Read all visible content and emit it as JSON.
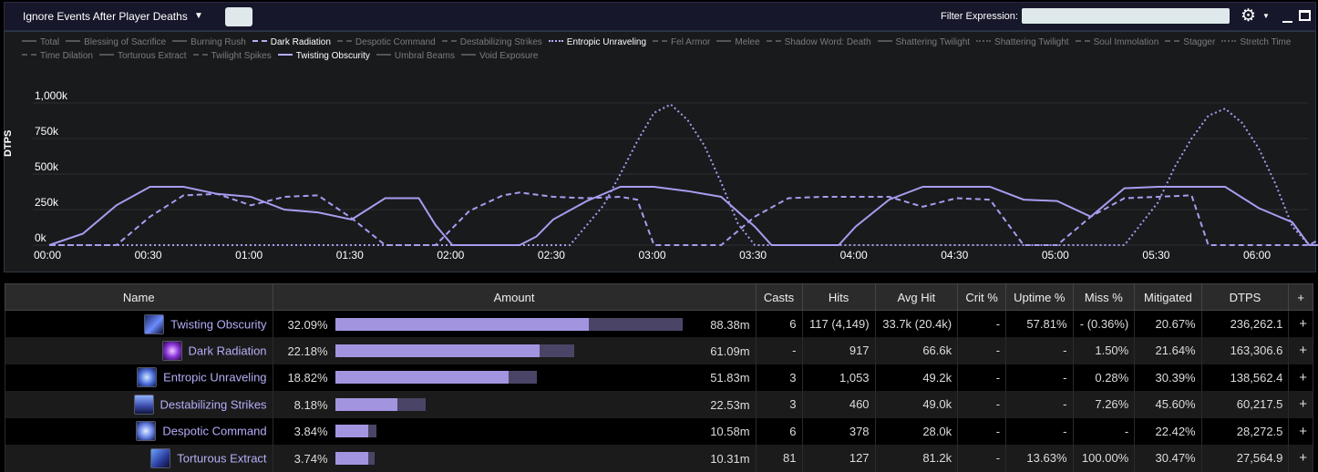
{
  "toolbar": {
    "ignore_events_label": "Ignore Events After Player Deaths",
    "filter_label": "Filter Expression:",
    "filter_value": ""
  },
  "chart_data": {
    "type": "line",
    "ylabel": "DTPS",
    "ylim": [
      0,
      1100000
    ],
    "y_ticks": [
      "0k",
      "250k",
      "500k",
      "750k",
      "1,000k"
    ],
    "x_ticks": [
      "00:00",
      "00:30",
      "01:00",
      "01:30",
      "02:00",
      "02:30",
      "03:00",
      "03:30",
      "04:00",
      "04:30",
      "05:00",
      "05:30",
      "06:00"
    ],
    "legend": [
      {
        "name": "Total",
        "dash": "solid",
        "highlighted": false
      },
      {
        "name": "Blessing of Sacrifice",
        "dash": "solid",
        "highlighted": false
      },
      {
        "name": "Burning Rush",
        "dash": "solid",
        "highlighted": false
      },
      {
        "name": "Dark Radiation",
        "dash": "dashed",
        "highlighted": true
      },
      {
        "name": "Despotic Command",
        "dash": "dashdot",
        "highlighted": false
      },
      {
        "name": "Destabilizing Strikes",
        "dash": "dashed",
        "highlighted": false
      },
      {
        "name": "Entropic Unraveling",
        "dash": "dotted",
        "highlighted": true
      },
      {
        "name": "Fel Armor",
        "dash": "dashdot",
        "highlighted": false
      },
      {
        "name": "Melee",
        "dash": "solid",
        "highlighted": false
      },
      {
        "name": "Shadow Word: Death",
        "dash": "dashdot",
        "highlighted": false
      },
      {
        "name": "Shattering Twilight",
        "dash": "solid",
        "highlighted": false
      },
      {
        "name": "Shattering Twilight",
        "dash": "dotted",
        "highlighted": false
      },
      {
        "name": "Soul Immolation",
        "dash": "dashed",
        "highlighted": false
      },
      {
        "name": "Stagger",
        "dash": "dashed",
        "highlighted": false
      },
      {
        "name": "Stretch Time",
        "dash": "dotted",
        "highlighted": false
      },
      {
        "name": "Time Dilation",
        "dash": "dashdot",
        "highlighted": false
      },
      {
        "name": "Torturous Extract",
        "dash": "solid",
        "highlighted": false
      },
      {
        "name": "Twilight Spikes",
        "dash": "dashed",
        "highlighted": false
      },
      {
        "name": "Twisting Obscurity",
        "dash": "solid",
        "highlighted": true
      },
      {
        "name": "Umbral Beams",
        "dash": "solid",
        "highlighted": false
      },
      {
        "name": "Void Exposure",
        "dash": "solid",
        "highlighted": false
      }
    ],
    "series": [
      {
        "name": "Twisting Obscurity",
        "dash": "solid",
        "color": "#a89cf0",
        "points": [
          [
            0,
            0
          ],
          [
            10,
            80
          ],
          [
            20,
            280
          ],
          [
            30,
            410
          ],
          [
            40,
            410
          ],
          [
            50,
            360
          ],
          [
            60,
            340
          ],
          [
            70,
            250
          ],
          [
            80,
            230
          ],
          [
            90,
            180
          ],
          [
            100,
            330
          ],
          [
            110,
            330
          ],
          [
            115,
            140
          ],
          [
            120,
            0
          ],
          [
            140,
            0
          ],
          [
            145,
            60
          ],
          [
            150,
            180
          ],
          [
            160,
            310
          ],
          [
            170,
            410
          ],
          [
            180,
            410
          ],
          [
            190,
            380
          ],
          [
            200,
            340
          ],
          [
            210,
            130
          ],
          [
            215,
            0
          ],
          [
            235,
            0
          ],
          [
            240,
            130
          ],
          [
            250,
            320
          ],
          [
            260,
            410
          ],
          [
            270,
            410
          ],
          [
            280,
            410
          ],
          [
            290,
            320
          ],
          [
            300,
            310
          ],
          [
            310,
            200
          ],
          [
            320,
            400
          ],
          [
            330,
            410
          ],
          [
            340,
            410
          ],
          [
            350,
            410
          ],
          [
            360,
            260
          ],
          [
            370,
            160
          ],
          [
            375,
            0
          ],
          [
            395,
            0
          ],
          [
            400,
            200
          ],
          [
            410,
            360
          ],
          [
            420,
            410
          ],
          [
            430,
            400
          ],
          [
            440,
            360
          ],
          [
            450,
            360
          ],
          [
            460,
            280
          ],
          [
            470,
            240
          ],
          [
            480,
            290
          ],
          [
            490,
            350
          ],
          [
            500,
            360
          ],
          [
            510,
            330
          ],
          [
            520,
            300
          ],
          [
            530,
            230
          ],
          [
            535,
            0
          ],
          [
            560,
            0
          ]
        ]
      },
      {
        "name": "Dark Radiation",
        "dash": "dashed",
        "color": "#a89cf0",
        "points": [
          [
            0,
            0
          ],
          [
            20,
            0
          ],
          [
            30,
            200
          ],
          [
            40,
            350
          ],
          [
            50,
            360
          ],
          [
            60,
            280
          ],
          [
            70,
            340
          ],
          [
            80,
            350
          ],
          [
            90,
            190
          ],
          [
            100,
            0
          ],
          [
            115,
            0
          ],
          [
            125,
            240
          ],
          [
            135,
            350
          ],
          [
            140,
            370
          ],
          [
            150,
            340
          ],
          [
            160,
            330
          ],
          [
            170,
            340
          ],
          [
            175,
            320
          ],
          [
            180,
            0
          ],
          [
            200,
            0
          ],
          [
            210,
            200
          ],
          [
            220,
            330
          ],
          [
            230,
            340
          ],
          [
            240,
            340
          ],
          [
            250,
            340
          ],
          [
            260,
            270
          ],
          [
            270,
            330
          ],
          [
            280,
            320
          ],
          [
            290,
            0
          ],
          [
            300,
            0
          ],
          [
            310,
            200
          ],
          [
            320,
            330
          ],
          [
            330,
            340
          ],
          [
            340,
            350
          ],
          [
            345,
            0
          ],
          [
            375,
            0
          ],
          [
            390,
            200
          ],
          [
            400,
            320
          ],
          [
            410,
            330
          ],
          [
            420,
            310
          ],
          [
            430,
            300
          ],
          [
            440,
            310
          ],
          [
            450,
            290
          ],
          [
            460,
            0
          ],
          [
            470,
            0
          ],
          [
            480,
            210
          ],
          [
            490,
            340
          ],
          [
            500,
            350
          ],
          [
            510,
            340
          ],
          [
            520,
            0
          ],
          [
            560,
            0
          ]
        ]
      },
      {
        "name": "Entropic Unraveling",
        "dash": "dotted",
        "color": "#a89cf0",
        "points": [
          [
            0,
            0
          ],
          [
            155,
            0
          ],
          [
            165,
            280
          ],
          [
            170,
            500
          ],
          [
            175,
            730
          ],
          [
            180,
            930
          ],
          [
            185,
            990
          ],
          [
            190,
            880
          ],
          [
            195,
            700
          ],
          [
            200,
            440
          ],
          [
            205,
            150
          ],
          [
            210,
            0
          ],
          [
            320,
            0
          ],
          [
            330,
            300
          ],
          [
            335,
            550
          ],
          [
            340,
            750
          ],
          [
            345,
            910
          ],
          [
            350,
            960
          ],
          [
            355,
            860
          ],
          [
            360,
            680
          ],
          [
            365,
            430
          ],
          [
            370,
            130
          ],
          [
            375,
            0
          ],
          [
            490,
            0
          ],
          [
            500,
            200
          ],
          [
            510,
            480
          ],
          [
            520,
            720
          ],
          [
            525,
            780
          ],
          [
            530,
            740
          ],
          [
            535,
            580
          ],
          [
            545,
            300
          ],
          [
            555,
            40
          ],
          [
            560,
            0
          ]
        ]
      }
    ]
  },
  "table": {
    "headers": [
      "Name",
      "Amount",
      "Casts",
      "Hits",
      "Avg Hit",
      "Crit %",
      "Uptime %",
      "Miss %",
      "Mitigated",
      "DTPS",
      "+"
    ],
    "rows": [
      {
        "name": "Twisting Obscurity",
        "icon": "twisting-obscurity-icon",
        "pct": "32.09%",
        "bar_fraction": 0.73,
        "bar_total_fraction": 1.0,
        "amount": "88.38m",
        "casts": "6",
        "hits": "117 (4,149)",
        "avg_hit": "33.7k (20.4k)",
        "crit": "-",
        "uptime": "57.81%",
        "miss": "- (0.36%)",
        "mitigated": "20.67%",
        "dtps": "236,262.1",
        "plus": "+"
      },
      {
        "name": "Dark Radiation",
        "icon": "dark-radiation-icon",
        "pct": "22.18%",
        "bar_fraction": 0.59,
        "bar_total_fraction": 0.69,
        "amount": "61.09m",
        "casts": "-",
        "hits": "917",
        "avg_hit": "66.6k",
        "crit": "-",
        "uptime": "-",
        "miss": "1.50%",
        "mitigated": "21.64%",
        "dtps": "163,306.6",
        "plus": "+"
      },
      {
        "name": "Entropic Unraveling",
        "icon": "entropic-unraveling-icon",
        "pct": "18.82%",
        "bar_fraction": 0.5,
        "bar_total_fraction": 0.58,
        "amount": "51.83m",
        "casts": "3",
        "hits": "1,053",
        "avg_hit": "49.2k",
        "crit": "-",
        "uptime": "-",
        "miss": "0.28%",
        "mitigated": "30.39%",
        "dtps": "138,562.4",
        "plus": "+"
      },
      {
        "name": "Destabilizing Strikes",
        "icon": "destabilizing-strikes-icon",
        "pct": "8.18%",
        "bar_fraction": 0.18,
        "bar_total_fraction": 0.26,
        "amount": "22.53m",
        "casts": "3",
        "hits": "460",
        "avg_hit": "49.0k",
        "crit": "-",
        "uptime": "-",
        "miss": "7.26%",
        "mitigated": "45.60%",
        "dtps": "60,217.5",
        "plus": "+"
      },
      {
        "name": "Despotic Command",
        "icon": "despotic-command-icon",
        "pct": "3.84%",
        "bar_fraction": 0.095,
        "bar_total_fraction": 0.12,
        "amount": "10.58m",
        "casts": "6",
        "hits": "378",
        "avg_hit": "28.0k",
        "crit": "-",
        "uptime": "-",
        "miss": "-",
        "mitigated": "22.42%",
        "dtps": "28,272.5",
        "plus": "+"
      },
      {
        "name": "Torturous Extract",
        "icon": "torturous-extract-icon",
        "pct": "3.74%",
        "bar_fraction": 0.095,
        "bar_total_fraction": 0.115,
        "amount": "10.31m",
        "casts": "81",
        "hits": "127",
        "avg_hit": "81.2k",
        "crit": "-",
        "uptime": "13.63%",
        "miss": "100.00%",
        "mitigated": "30.47%",
        "dtps": "27,564.9",
        "plus": "+"
      }
    ]
  }
}
